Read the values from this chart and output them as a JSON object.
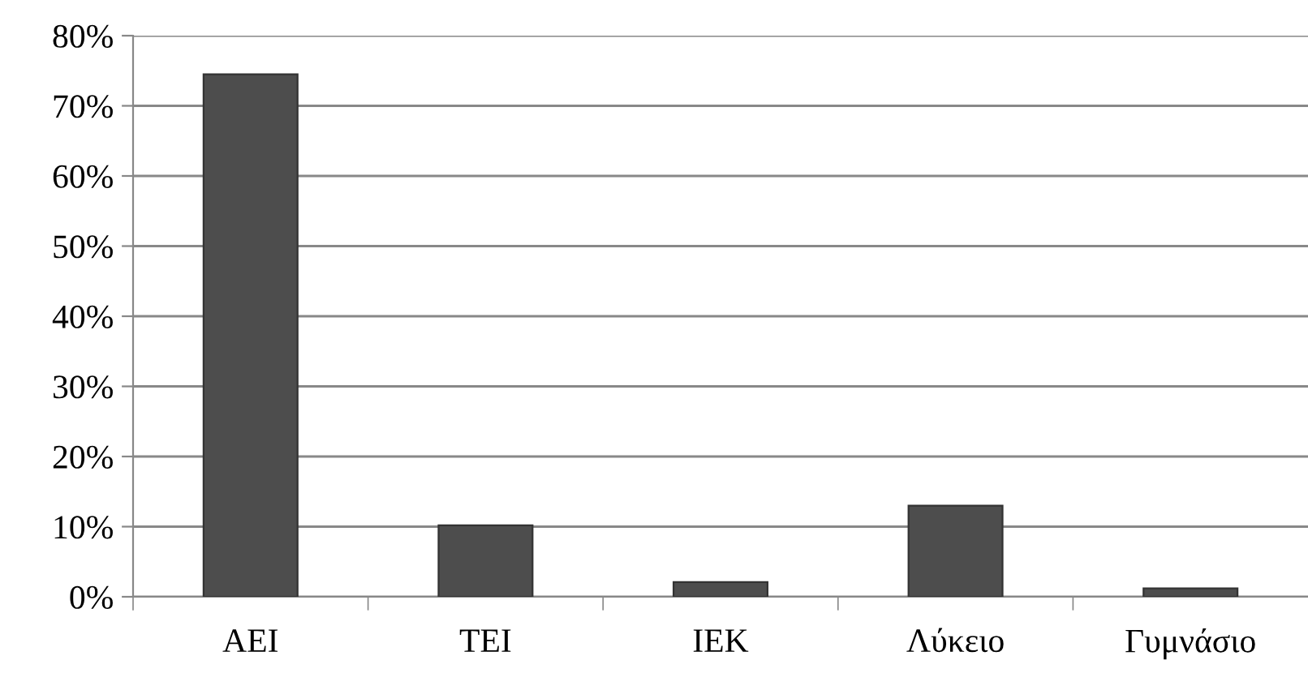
{
  "chart_data": {
    "type": "bar",
    "categories": [
      "ΑΕΙ",
      "ΤΕΙ",
      "ΙΕΚ",
      "Λύκειο",
      "Γυμνάσιο"
    ],
    "values": [
      74.5,
      10.2,
      2.1,
      13.0,
      1.2
    ],
    "color": "#4d4d4d",
    "ylim": [
      0,
      80
    ],
    "yticks": [
      {
        "value": 0,
        "label": "0%"
      },
      {
        "value": 10,
        "label": "10%"
      },
      {
        "value": 20,
        "label": "20%"
      },
      {
        "value": 30,
        "label": "30%"
      },
      {
        "value": 40,
        "label": "40%"
      },
      {
        "value": 50,
        "label": "50%"
      },
      {
        "value": 60,
        "label": "60%"
      },
      {
        "value": 70,
        "label": "70%"
      },
      {
        "value": 80,
        "label": "80%"
      }
    ],
    "grid": "y",
    "legend": false
  }
}
